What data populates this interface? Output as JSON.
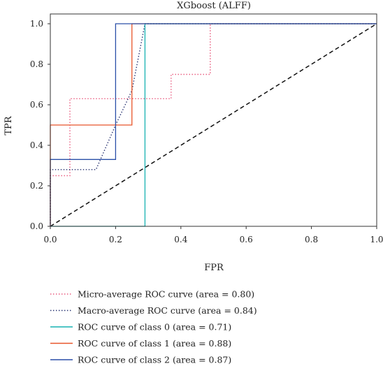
{
  "chart_data": {
    "type": "line",
    "title": "XGboost (ALFF)",
    "xlabel": "FPR",
    "ylabel": "TPR",
    "xlim": [
      0.0,
      1.0
    ],
    "ylim": [
      0.0,
      1.0
    ],
    "xticks": [
      "0.0",
      "0.2",
      "0.4",
      "0.6",
      "0.8",
      "1.0"
    ],
    "yticks": [
      "0.0",
      "0.2",
      "0.4",
      "0.6",
      "0.8",
      "1.0"
    ],
    "grid": false,
    "legend_position": "below plot",
    "series": [
      {
        "name": "Micro-average ROC curve (area = 0.80)",
        "color": "#e8547a",
        "dash": "dotted",
        "x": [
          0.0,
          0.0,
          0.06,
          0.06,
          0.37,
          0.37,
          0.49,
          0.49,
          1.0
        ],
        "y": [
          0.0,
          0.25,
          0.25,
          0.63,
          0.63,
          0.75,
          0.75,
          1.0,
          1.0
        ]
      },
      {
        "name": "Macro-average ROC curve (area = 0.84)",
        "color": "#1f2a6b",
        "dash": "dotted",
        "x": [
          0.0,
          0.0,
          0.14,
          0.2,
          0.25,
          0.29,
          1.0
        ],
        "y": [
          0.0,
          0.28,
          0.28,
          0.5,
          0.67,
          1.0,
          1.0
        ]
      },
      {
        "name": "ROC curve of class 0 (area = 0.71)",
        "color": "#17b2b2",
        "dash": "solid",
        "x": [
          0.0,
          0.29,
          0.29,
          1.0
        ],
        "y": [
          0.0,
          0.0,
          1.0,
          1.0
        ]
      },
      {
        "name": "ROC curve of class 1 (area = 0.88)",
        "color": "#e8552a",
        "dash": "solid",
        "x": [
          0.0,
          0.0,
          0.25,
          0.25,
          1.0
        ],
        "y": [
          0.0,
          0.5,
          0.5,
          1.0,
          1.0
        ]
      },
      {
        "name": "ROC curve of class 2 (area = 0.87)",
        "color": "#2a4fa8",
        "dash": "solid",
        "x": [
          0.0,
          0.0,
          0.2,
          0.2,
          1.0
        ],
        "y": [
          0.0,
          0.33,
          0.33,
          1.0,
          1.0
        ]
      }
    ],
    "reference_line": {
      "color": "#111111",
      "dash": "dashed",
      "x": [
        0.0,
        1.0
      ],
      "y": [
        0.0,
        1.0
      ]
    }
  }
}
